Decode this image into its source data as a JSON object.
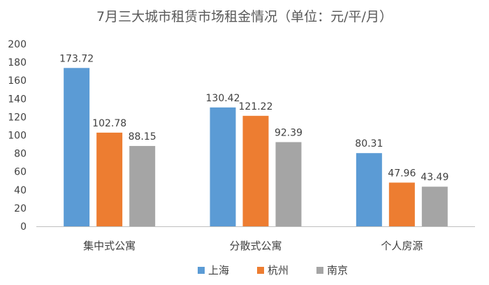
{
  "chart_data": {
    "type": "bar",
    "title": "7月三大城市租赁市场租金情况（单位：元/平/月）",
    "xlabel": "",
    "ylabel": "",
    "categories": [
      "集中式公寓",
      "分散式公寓",
      "个人房源"
    ],
    "series": [
      {
        "name": "上海",
        "values": [
          173.72,
          130.42,
          80.31
        ],
        "color": "#5B9BD5"
      },
      {
        "name": "杭州",
        "values": [
          102.78,
          121.22,
          47.96
        ],
        "color": "#ED7D31"
      },
      {
        "name": "南京",
        "values": [
          88.15,
          92.39,
          43.49
        ],
        "color": "#A5A5A5"
      }
    ],
    "ylim": [
      0,
      200
    ],
    "yticks": [
      0,
      20,
      40,
      60,
      80,
      100,
      120,
      140,
      160,
      180,
      200
    ],
    "value_labels": [
      "173.72",
      "102.78",
      "88.15",
      "130.42",
      "121.22",
      "92.39",
      "80.31",
      "47.96",
      "43.49"
    ],
    "grid": false,
    "legend_position": "bottom",
    "axis_color": "#BFBFBF"
  }
}
